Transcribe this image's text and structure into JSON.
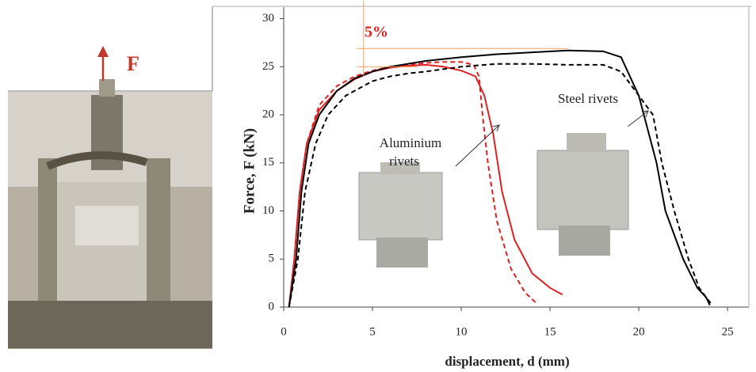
{
  "chart_data": {
    "type": "line",
    "xlabel": "displacement, d (mm)",
    "ylabel": "Force, F (kN)",
    "annotations": [
      "Aluminium",
      "rivets",
      "Steel rivets",
      "5%",
      "F"
    ],
    "xlim": [
      0,
      26.2
    ],
    "ylim": [
      0,
      31.2
    ],
    "xticks": [
      0,
      5,
      10,
      15,
      20,
      25
    ],
    "yticks": [
      0,
      5,
      10,
      15,
      20,
      25,
      30
    ],
    "grid": false,
    "reference_color": "#f0a060",
    "vline": 4.5,
    "hlines": [
      26.9,
      25
    ],
    "series": [
      {
        "color": "#e02020",
        "dash": false,
        "x": [
          0.3,
          0.6,
          0.9,
          1.3,
          2,
          3,
          4,
          5,
          6,
          7,
          8,
          9,
          10,
          10.8,
          11.3,
          11.8,
          12.3,
          13,
          14,
          15,
          15.7
        ],
        "values": [
          0,
          5,
          12,
          17,
          20.5,
          22.5,
          23.7,
          24.5,
          24.9,
          25.1,
          25.2,
          25,
          24.6,
          24,
          22,
          18,
          12,
          7,
          3.5,
          2,
          1.3
        ]
      },
      {
        "color": "#e02020",
        "dash": true,
        "x": [
          0.3,
          0.6,
          0.9,
          1.3,
          2,
          3,
          4,
          5,
          6,
          7,
          8,
          9,
          10,
          10.7,
          11,
          11.2,
          11.5,
          12,
          12.8,
          13.6,
          14.3
        ],
        "values": [
          0,
          5,
          12,
          17,
          21,
          23,
          24,
          24.6,
          25,
          25.2,
          25.4,
          25.5,
          25.5,
          25.2,
          24,
          20,
          15,
          9,
          4,
          1.5,
          0.3
        ]
      },
      {
        "color": "#000000",
        "dash": false,
        "x": [
          0.3,
          0.7,
          1,
          1.4,
          2,
          3,
          4,
          5,
          6,
          8,
          10,
          12,
          14,
          16,
          18,
          19,
          20,
          21,
          21.5,
          22.5,
          23.3,
          23.8,
          24
        ],
        "values": [
          0,
          5,
          12,
          17,
          20,
          22.5,
          23.8,
          24.5,
          25,
          25.6,
          26,
          26.3,
          26.5,
          26.7,
          26.6,
          26,
          22,
          15,
          10,
          5,
          2,
          1,
          0.2
        ]
      },
      {
        "color": "#000000",
        "dash": true,
        "x": [
          0.3,
          0.8,
          1.2,
          1.8,
          2.5,
          3.5,
          5,
          6,
          7,
          8,
          10,
          12,
          14,
          16,
          18,
          19,
          20,
          20.8,
          21.3,
          22,
          22.8,
          23.4,
          23.8,
          24.1
        ],
        "values": [
          0,
          5,
          12,
          17,
          20,
          22,
          23.5,
          24,
          24.3,
          24.5,
          25,
          25.3,
          25.3,
          25.2,
          25.2,
          24.5,
          22,
          20,
          15,
          10,
          5,
          2,
          1,
          0.3
        ]
      }
    ]
  }
}
